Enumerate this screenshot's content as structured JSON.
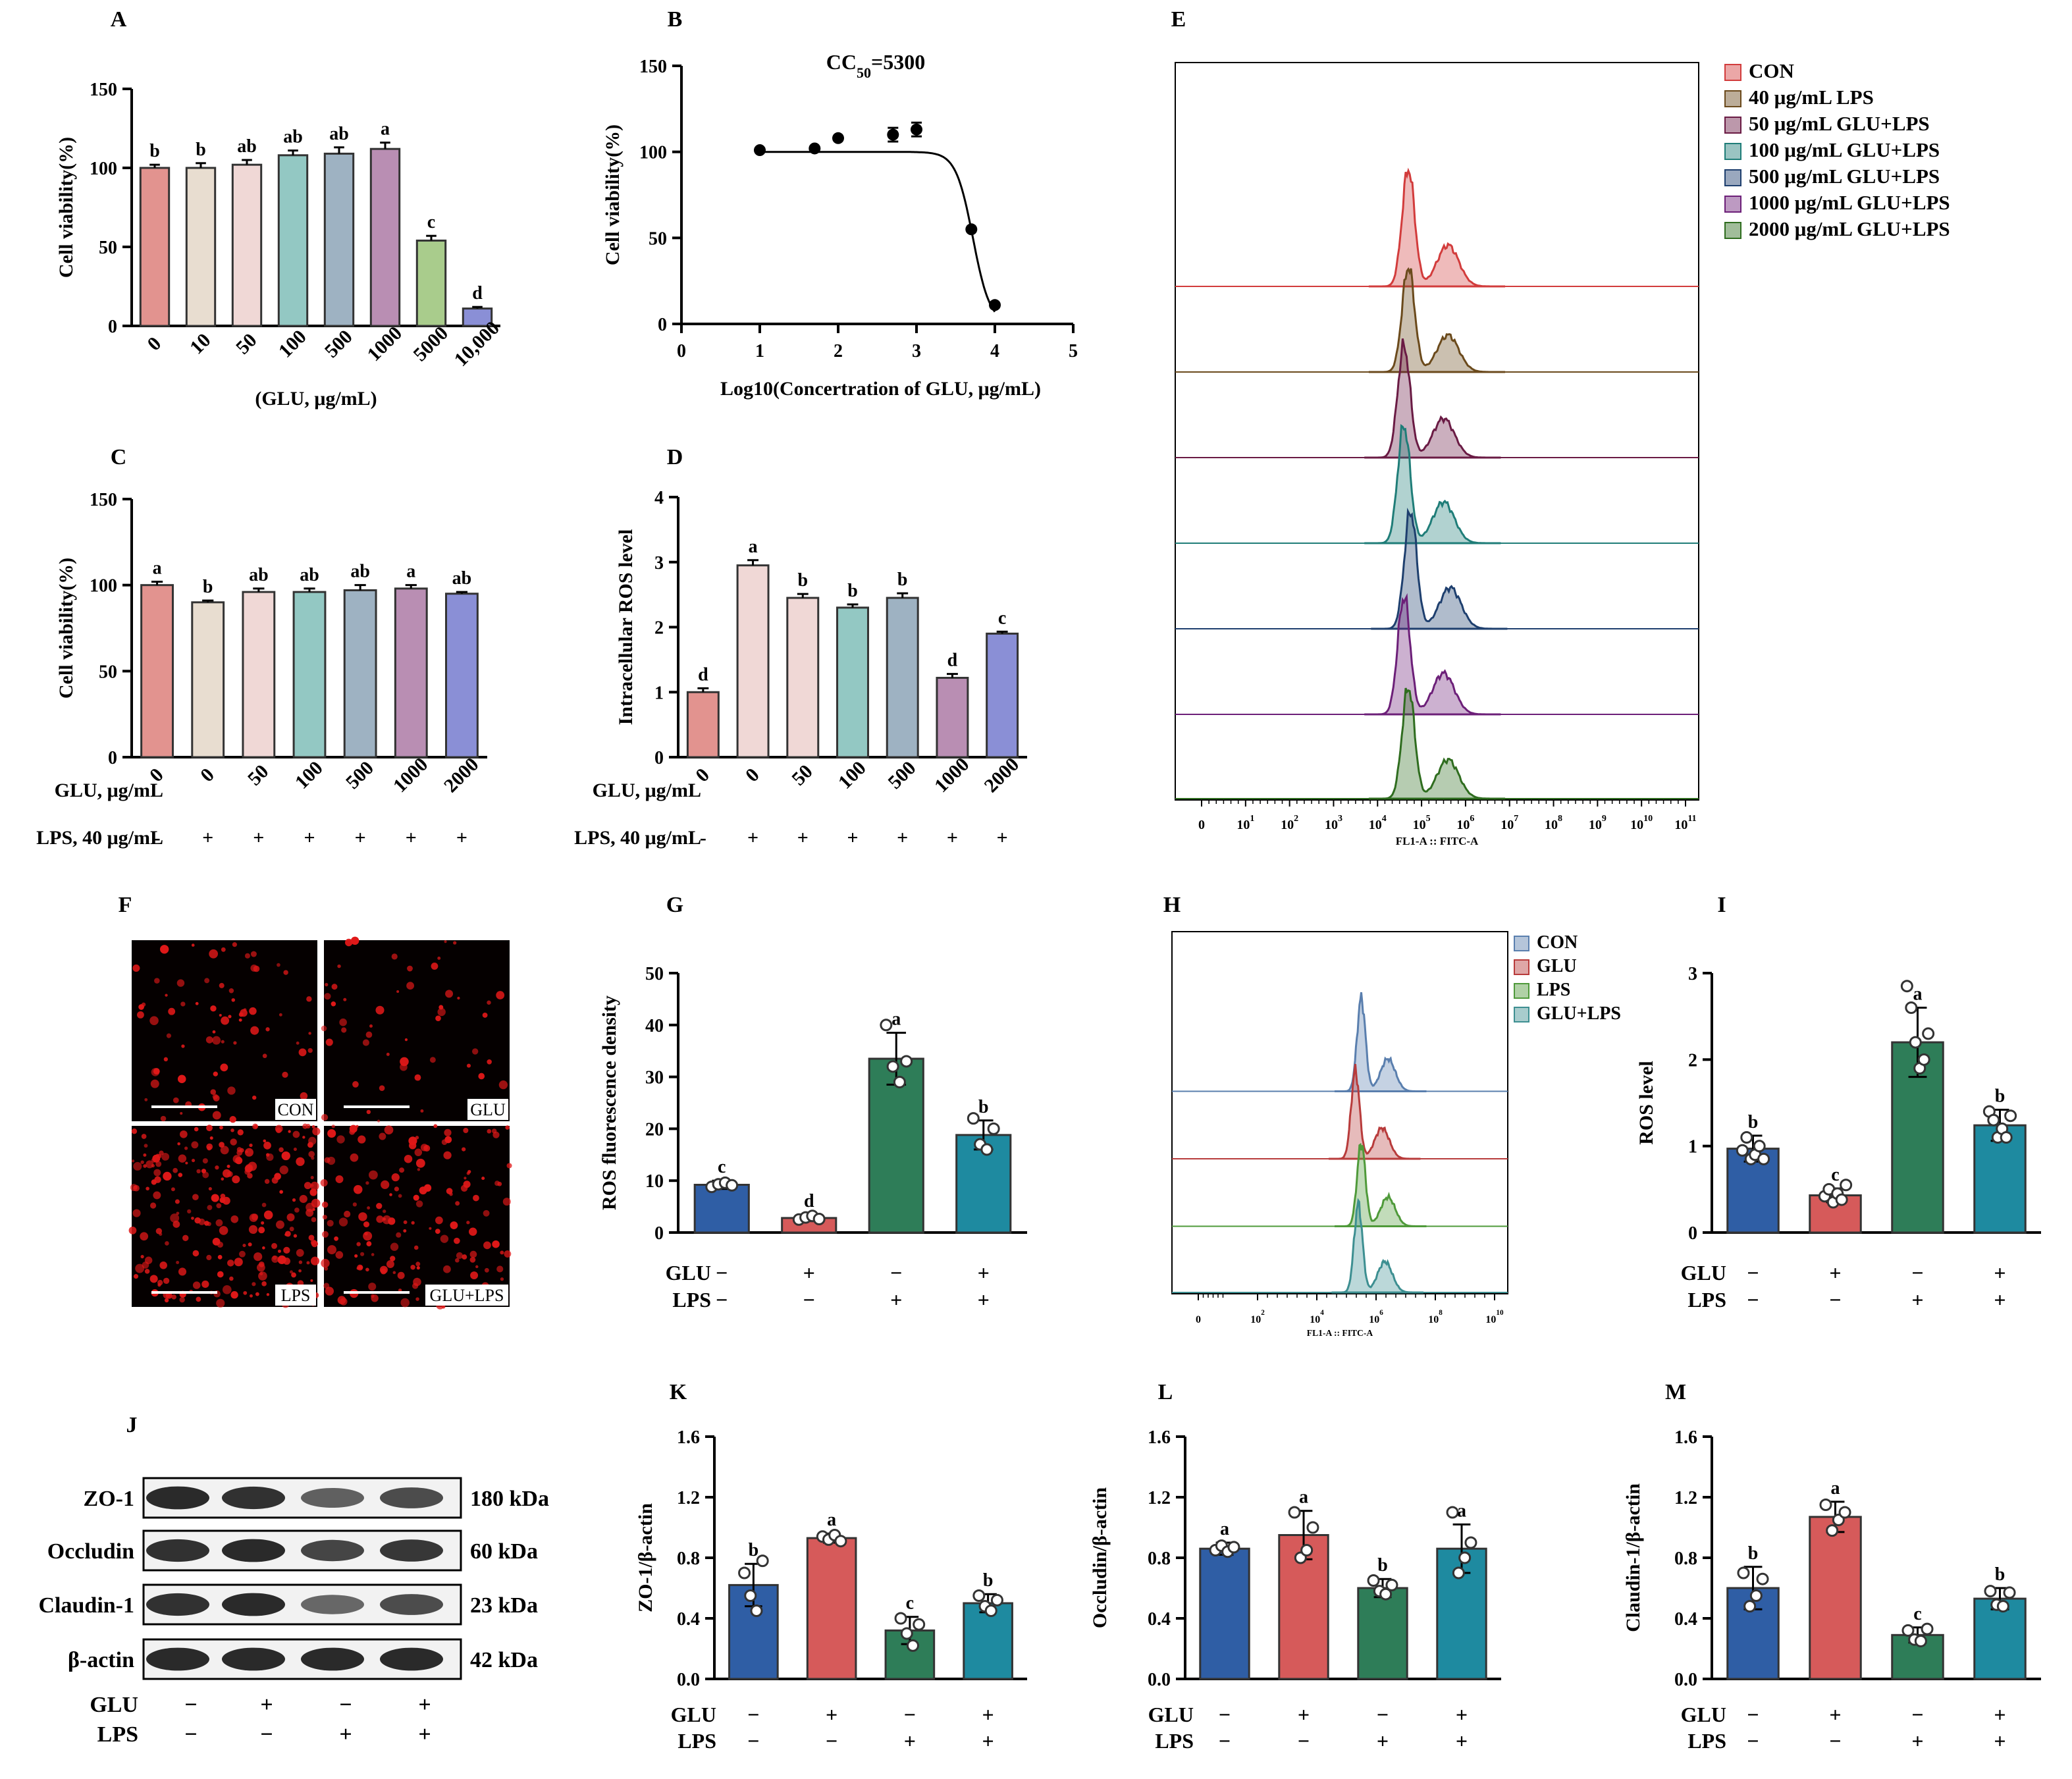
{
  "figure": {
    "panel_letters": [
      "A",
      "B",
      "C",
      "D",
      "E",
      "F",
      "G",
      "H",
      "I",
      "J",
      "K",
      "L",
      "M"
    ]
  },
  "colors": {
    "salmon": "#e2938f",
    "beige": "#e8ddd0",
    "pink": "#f0d8d6",
    "teal_light": "#93c8c3",
    "gray_blue": "#9eb2c2",
    "purple": "#b98eb3",
    "green": "#a9cc8c",
    "blue_violet": "#8a8fd6",
    "navy": "#2f5ea5",
    "red": "#d65a5a",
    "dark_green": "#2e7d58",
    "teal": "#1e8aa0",
    "hist_red": "#d23c3c",
    "hist_brown": "#6b4a1c",
    "hist_maroon": "#6a1b44",
    "hist_teal": "#1f7d78",
    "hist_navy": "#1e3f6e",
    "hist_purple": "#6c1f78",
    "hist_green": "#2f6d1f",
    "h_blue": "#5a7fae",
    "h_red": "#b83b3b",
    "h_green": "#4f9a3a",
    "h_teal": "#3d8f91"
  },
  "chart_data": [
    {
      "panel": "A",
      "type": "bar",
      "xlabel": "(GLU, μg/mL)",
      "ylabel": "Cell viability(%)",
      "ylim": [
        0,
        150
      ],
      "yticks": [
        0,
        50,
        100,
        150
      ],
      "categories": [
        "0",
        "10",
        "50",
        "100",
        "500",
        "1000",
        "5000",
        "10,000"
      ],
      "values": [
        100,
        100,
        102,
        108,
        109,
        112,
        54,
        11
      ],
      "errors": [
        2,
        3,
        3,
        3,
        4,
        4,
        3,
        1
      ],
      "letters": [
        "b",
        "b",
        "ab",
        "ab",
        "ab",
        "a",
        "c",
        "d"
      ],
      "colors": [
        "#e2938f",
        "#e8ddd0",
        "#f0d8d6",
        "#93c8c3",
        "#9eb2c2",
        "#b98eb3",
        "#a9cc8c",
        "#8a8fd6"
      ]
    },
    {
      "panel": "B",
      "type": "scatter",
      "title": "CC50=5300",
      "title_main": "CC",
      "title_sub": "50",
      "title_rest": "=5300",
      "xlabel": "Log10(Concertration of GLU, μg/mL)",
      "ylabel": "Cell viability(%)",
      "xlim": [
        0,
        5
      ],
      "ylim": [
        0,
        150
      ],
      "xticks": [
        0,
        1,
        2,
        3,
        4,
        5
      ],
      "yticks": [
        0,
        50,
        100,
        150
      ],
      "x": [
        1,
        1.7,
        2,
        2.7,
        3,
        3.7,
        4
      ],
      "y": [
        101,
        102,
        108,
        110,
        113,
        55,
        11
      ],
      "errors": [
        0,
        0,
        0,
        4,
        4,
        0,
        0
      ],
      "fit_params": {
        "top": 100,
        "bottom": 0,
        "logIC50": 3.72,
        "hill": 4
      }
    },
    {
      "panel": "C",
      "type": "bar",
      "ylabel": "Cell viability(%)",
      "ylim": [
        0,
        150
      ],
      "yticks": [
        0,
        50,
        100,
        150
      ],
      "row1_label": "GLU, μg/mL",
      "row2_label": "LPS, 40 μg/mL",
      "categories": [
        "0",
        "0",
        "50",
        "100",
        "500",
        "1000",
        "2000"
      ],
      "lps": [
        "-",
        "+",
        "+",
        "+",
        "+",
        "+",
        "+"
      ],
      "values": [
        100,
        90,
        96,
        96,
        97,
        98,
        95
      ],
      "errors": [
        2,
        1,
        2,
        2,
        3,
        2,
        1
      ],
      "letters": [
        "a",
        "b",
        "ab",
        "ab",
        "ab",
        "a",
        "ab"
      ],
      "colors": [
        "#e2938f",
        "#e8ddd0",
        "#f0d8d6",
        "#93c8c3",
        "#9eb2c2",
        "#b98eb3",
        "#8a8fd6"
      ]
    },
    {
      "panel": "D",
      "type": "bar",
      "ylabel": "Intracellular ROS level",
      "ylim": [
        0,
        4
      ],
      "yticks": [
        0,
        1,
        2,
        3,
        4
      ],
      "row1_label": "GLU, μg/mL",
      "row2_label": "LPS, 40 μg/mL",
      "categories": [
        "0",
        "0",
        "50",
        "100",
        "500",
        "1000",
        "2000"
      ],
      "lps": [
        "-",
        "+",
        "+",
        "+",
        "+",
        "+",
        "+"
      ],
      "values": [
        1.0,
        2.95,
        2.45,
        2.3,
        2.45,
        1.22,
        1.9
      ],
      "errors": [
        0.06,
        0.08,
        0.06,
        0.05,
        0.07,
        0.06,
        0.03
      ],
      "letters": [
        "d",
        "a",
        "b",
        "b",
        "b",
        "d",
        "c"
      ],
      "colors": [
        "#e2938f",
        "#f0d8d6",
        "#f0d8d6",
        "#93c8c3",
        "#9eb2c2",
        "#b98eb3",
        "#8a8fd6"
      ]
    },
    {
      "panel": "E",
      "type": "area",
      "xlabel": "FL1-A :: FITC-A",
      "xtick_base": [
        "0",
        "10",
        "10",
        "10",
        "10",
        "10",
        "10",
        "10",
        "10",
        "10",
        "10",
        "10"
      ],
      "xtick_exp": [
        "",
        "1",
        "2",
        "3",
        "4",
        "5",
        "6",
        "7",
        "8",
        "9",
        "10",
        "11"
      ],
      "x_range": [
        0,
        11
      ],
      "series": [
        {
          "name": "CON",
          "color": "#d23c3c",
          "peak": 4.7,
          "height": 0.95
        },
        {
          "name": "40 μg/mL LPS",
          "color": "#6b4a1c",
          "peak": 4.7,
          "height": 0.85
        },
        {
          "name": "50 μg/mL GLU+LPS",
          "color": "#6a1b44",
          "peak": 4.6,
          "height": 0.9
        },
        {
          "name": "100 μg/mL GLU+LPS",
          "color": "#1f7d78",
          "peak": 4.6,
          "height": 0.95
        },
        {
          "name": "500 μg/mL GLU+LPS",
          "color": "#1e3f6e",
          "peak": 4.75,
          "height": 0.95
        },
        {
          "name": "1000 μg/mL GLU+LPS",
          "color": "#6c1f78",
          "peak": 4.6,
          "height": 0.95
        },
        {
          "name": "2000 μg/mL GLU+LPS",
          "color": "#2f6d1f",
          "peak": 4.7,
          "height": 0.9
        }
      ]
    },
    {
      "panel": "G",
      "type": "bar",
      "ylabel": "ROS fluorescence density",
      "ylim": [
        0,
        50
      ],
      "yticks": [
        0,
        10,
        20,
        30,
        40,
        50
      ],
      "glu": [
        "−",
        "+",
        "−",
        "+"
      ],
      "lps": [
        "−",
        "−",
        "+",
        "+"
      ],
      "values": [
        9.2,
        2.8,
        33.5,
        18.8
      ],
      "errors": [
        0.8,
        0.6,
        5,
        2.8
      ],
      "points": [
        [
          8.8,
          9.3,
          9.6,
          9.1
        ],
        [
          2.5,
          2.9,
          3.2,
          2.6
        ],
        [
          40,
          32,
          29,
          33
        ],
        [
          22,
          17,
          16,
          20
        ]
      ],
      "letters": [
        "c",
        "d",
        "a",
        "b"
      ],
      "colors": [
        "#2f5ea5",
        "#d65a5a",
        "#2e7d58",
        "#1e8aa0"
      ]
    },
    {
      "panel": "H",
      "type": "area",
      "xlabel": "FL1-A :: FITC-A",
      "xtick_base": [
        "0",
        "10",
        "10",
        "10",
        "10",
        "10"
      ],
      "xtick_exp": [
        "",
        "2",
        "4",
        "6",
        "8",
        "10"
      ],
      "x_range": [
        0,
        10
      ],
      "series": [
        {
          "name": "CON",
          "color": "#5a7fae",
          "peak": 5.5,
          "height": 0.95
        },
        {
          "name": "GLU",
          "color": "#b83b3b",
          "peak": 5.3,
          "height": 0.9
        },
        {
          "name": "LPS",
          "color": "#4f9a3a",
          "peak": 5.5,
          "height": 0.85
        },
        {
          "name": "GLU+LPS",
          "color": "#3d8f91",
          "peak": 5.4,
          "height": 0.9
        }
      ]
    },
    {
      "panel": "I",
      "type": "bar",
      "ylabel": "ROS level",
      "ylim": [
        0,
        3
      ],
      "yticks": [
        0,
        1,
        2,
        3
      ],
      "glu": [
        "−",
        "+",
        "−",
        "+"
      ],
      "lps": [
        "−",
        "−",
        "+",
        "+"
      ],
      "values": [
        0.97,
        0.43,
        2.2,
        1.24
      ],
      "errors": [
        0.15,
        0.08,
        0.4,
        0.18
      ],
      "points": [
        [
          0.95,
          1.1,
          0.85,
          0.9,
          1.0,
          0.85
        ],
        [
          0.42,
          0.5,
          0.35,
          0.45,
          0.38,
          0.55
        ],
        [
          2.85,
          2.6,
          2.2,
          1.9,
          2.0,
          2.3
        ],
        [
          1.4,
          1.3,
          1.1,
          1.2,
          1.1,
          1.35
        ]
      ],
      "letters": [
        "b",
        "c",
        "a",
        "b"
      ],
      "colors": [
        "#2f5ea5",
        "#d65a5a",
        "#2e7d58",
        "#1e8aa0"
      ]
    },
    {
      "panel": "K",
      "type": "bar",
      "ylabel": "ZO-1/β-actin",
      "ylim": [
        0,
        1.6
      ],
      "yticks": [
        "0.0",
        "0.4",
        "0.8",
        "1.2",
        "1.6"
      ],
      "glu": [
        "−",
        "+",
        "−",
        "+"
      ],
      "lps": [
        "−",
        "−",
        "+",
        "+"
      ],
      "values": [
        0.62,
        0.93,
        0.32,
        0.5
      ],
      "errors": [
        0.14,
        0.03,
        0.09,
        0.06
      ],
      "points": [
        [
          0.7,
          0.55,
          0.45,
          0.78
        ],
        [
          0.94,
          0.92,
          0.95,
          0.91
        ],
        [
          0.4,
          0.3,
          0.22,
          0.36
        ],
        [
          0.55,
          0.48,
          0.45,
          0.52
        ]
      ],
      "letters": [
        "b",
        "a",
        "c",
        "b"
      ],
      "colors": [
        "#2f5ea5",
        "#d65a5a",
        "#2e7d58",
        "#1e8aa0"
      ]
    },
    {
      "panel": "L",
      "type": "bar",
      "ylabel": "Occludin/β-actin",
      "ylim": [
        0,
        1.6
      ],
      "yticks": [
        "0.0",
        "0.4",
        "0.8",
        "1.2",
        "1.6"
      ],
      "glu": [
        "−",
        "+",
        "−",
        "+"
      ],
      "lps": [
        "−",
        "−",
        "+",
        "+"
      ],
      "values": [
        0.86,
        0.95,
        0.6,
        0.86
      ],
      "errors": [
        0.04,
        0.16,
        0.06,
        0.16
      ],
      "points": [
        [
          0.85,
          0.88,
          0.84,
          0.87
        ],
        [
          1.1,
          0.8,
          0.85,
          1.0
        ],
        [
          0.65,
          0.58,
          0.56,
          0.62
        ],
        [
          1.1,
          0.7,
          0.8,
          0.9
        ]
      ],
      "letters": [
        "a",
        "a",
        "b",
        "a"
      ],
      "colors": [
        "#2f5ea5",
        "#d65a5a",
        "#2e7d58",
        "#1e8aa0"
      ]
    },
    {
      "panel": "M",
      "type": "bar",
      "ylabel": "Claudin-1/β-actin",
      "ylim": [
        0,
        1.6
      ],
      "yticks": [
        "0.0",
        "0.4",
        "0.8",
        "1.2",
        "1.6"
      ],
      "glu": [
        "−",
        "+",
        "−",
        "+"
      ],
      "lps": [
        "−",
        "−",
        "+",
        "+"
      ],
      "values": [
        0.6,
        1.07,
        0.29,
        0.53
      ],
      "errors": [
        0.14,
        0.1,
        0.05,
        0.07
      ],
      "points": [
        [
          0.7,
          0.48,
          0.55,
          0.66
        ],
        [
          1.15,
          0.98,
          1.05,
          1.1
        ],
        [
          0.32,
          0.26,
          0.25,
          0.33
        ],
        [
          0.58,
          0.49,
          0.48,
          0.57
        ]
      ],
      "letters": [
        "b",
        "a",
        "c",
        "b"
      ],
      "colors": [
        "#2f5ea5",
        "#d65a5a",
        "#2e7d58",
        "#1e8aa0"
      ]
    }
  ],
  "micrographs": {
    "labels": [
      "CON",
      "GLU",
      "LPS",
      "GLU+LPS"
    ],
    "density": [
      0.18,
      0.12,
      0.55,
      0.38
    ]
  },
  "western_blot": {
    "rows": [
      {
        "protein": "ZO-1",
        "kda": "180 kDa",
        "intensity": [
          0.9,
          0.85,
          0.5,
          0.65
        ]
      },
      {
        "protein": "Occludin",
        "kda": "60 kDa",
        "intensity": [
          0.85,
          0.9,
          0.7,
          0.8
        ]
      },
      {
        "protein": "Claudin-1",
        "kda": "23 kDa",
        "intensity": [
          0.85,
          0.9,
          0.45,
          0.65
        ]
      },
      {
        "protein": "β-actin",
        "kda": "42 kDa",
        "intensity": [
          0.9,
          0.9,
          0.9,
          0.9
        ]
      }
    ],
    "glu_label": "GLU",
    "lps_label": "LPS",
    "glu": [
      "−",
      "+",
      "−",
      "+"
    ],
    "lps": [
      "−",
      "−",
      "+",
      "+"
    ]
  },
  "row_labels": {
    "glu": "GLU",
    "lps": "LPS"
  }
}
